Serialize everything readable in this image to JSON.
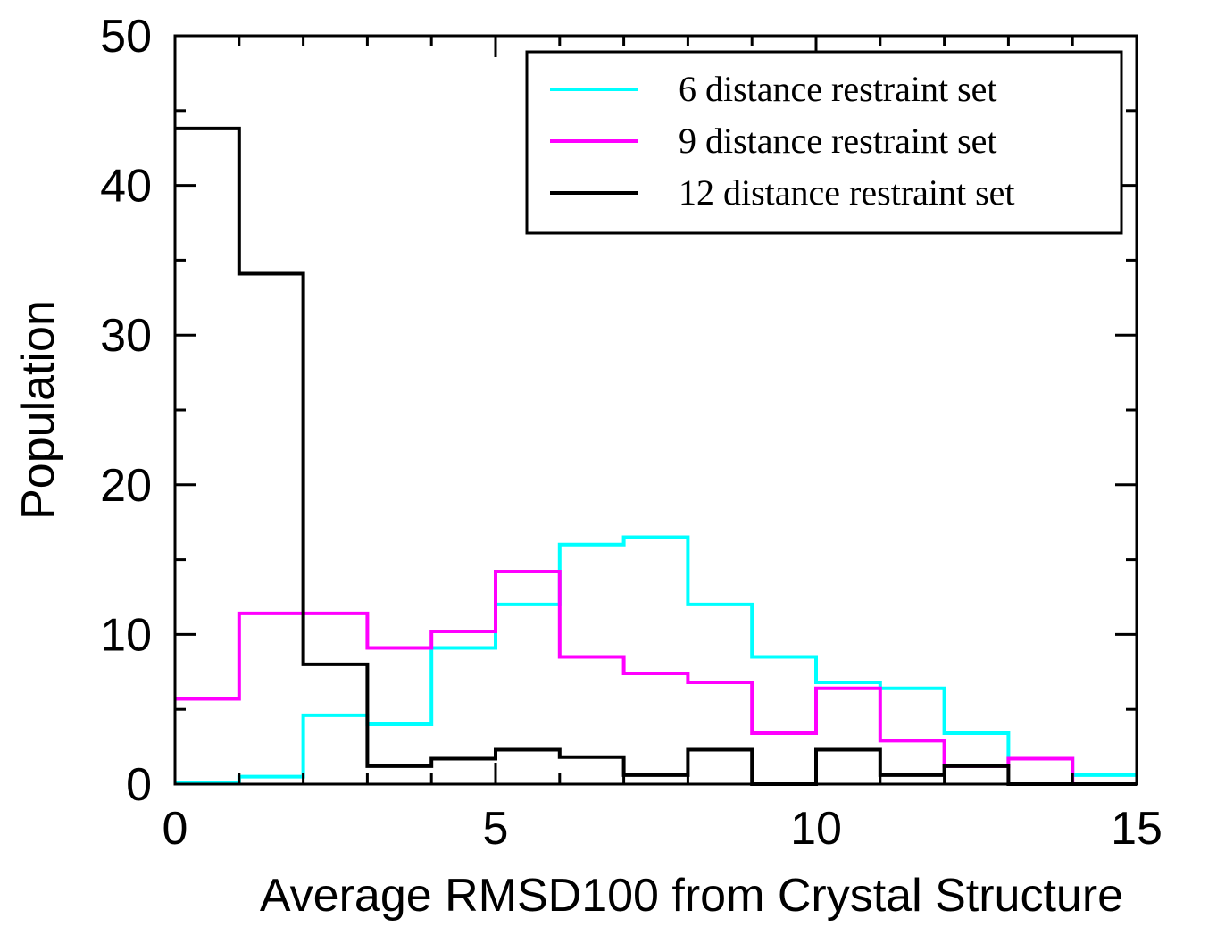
{
  "chart_data": {
    "type": "line",
    "xlabel": "Average RMSD100 from Crystal Structure",
    "ylabel": "Population",
    "xlim": [
      0,
      15
    ],
    "ylim": [
      0,
      50
    ],
    "x_ticks": [
      "0",
      "5",
      "10",
      "15"
    ],
    "y_ticks": [
      "0",
      "10",
      "20",
      "30",
      "40",
      "50"
    ],
    "bin_edges": [
      0,
      1,
      2,
      3,
      4,
      5,
      6,
      7,
      8,
      9,
      10,
      11,
      12,
      13,
      14,
      15
    ],
    "legend_position": "top-right",
    "series": [
      {
        "name": "6 distance restraint set",
        "color": "#00ffff",
        "values": [
          0.1,
          0.5,
          4.6,
          4.0,
          9.1,
          12.0,
          16.0,
          16.5,
          12.0,
          8.5,
          6.8,
          6.4,
          3.4,
          1.7,
          0.6
        ]
      },
      {
        "name": "9 distance restraint set",
        "color": "#ff00ff",
        "values": [
          5.7,
          11.4,
          11.4,
          9.1,
          10.2,
          14.2,
          8.5,
          7.4,
          6.8,
          3.4,
          6.4,
          2.9,
          1.2,
          1.7,
          0.0
        ]
      },
      {
        "name": "12 distance restraint set",
        "color": "#000000",
        "values": [
          43.8,
          34.1,
          8.0,
          1.2,
          1.7,
          2.3,
          1.8,
          0.6,
          2.3,
          0.0,
          2.3,
          0.6,
          1.2,
          0.0,
          0.0
        ]
      }
    ]
  }
}
